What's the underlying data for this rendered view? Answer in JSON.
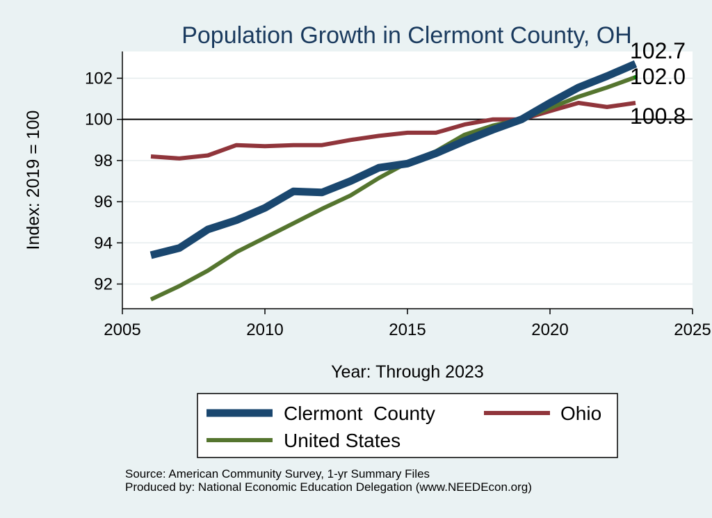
{
  "chart_data": {
    "type": "line",
    "title": "Population Growth in Clermont County, OH",
    "xlabel": "Year: Through 2023",
    "ylabel": "Index: 2019 = 100",
    "xlim": [
      2005,
      2025
    ],
    "ylim": [
      90.8,
      103.3
    ],
    "xticks": [
      2005,
      2010,
      2015,
      2020,
      2025
    ],
    "yticks": [
      92,
      94,
      96,
      98,
      100,
      102
    ],
    "reference_line": 100,
    "grid": true,
    "legend_position": "bottom",
    "x": [
      2006,
      2007,
      2008,
      2009,
      2010,
      2011,
      2012,
      2013,
      2014,
      2015,
      2016,
      2017,
      2018,
      2019,
      2020,
      2021,
      2022,
      2023
    ],
    "series": [
      {
        "name": "Clermont  County",
        "color": "#1a476f",
        "values": [
          93.4,
          93.75,
          94.65,
          95.1,
          95.7,
          96.5,
          96.45,
          97.0,
          97.65,
          97.85,
          98.35,
          98.95,
          99.5,
          100.0,
          100.8,
          101.55,
          102.1,
          102.7
        ],
        "end_label": "102.7"
      },
      {
        "name": "Ohio",
        "color": "#90353b",
        "values": [
          98.2,
          98.1,
          98.25,
          98.75,
          98.7,
          98.75,
          98.75,
          99.0,
          99.2,
          99.35,
          99.35,
          99.75,
          100.0,
          100.0,
          100.4,
          100.8,
          100.6,
          100.8
        ],
        "end_label": "100.8"
      },
      {
        "name": "United States",
        "color": "#55752f",
        "values": [
          91.25,
          91.9,
          92.65,
          93.55,
          94.25,
          94.95,
          95.65,
          96.3,
          97.15,
          97.9,
          98.45,
          99.25,
          99.7,
          100.0,
          100.55,
          101.1,
          101.55,
          102.05
        ],
        "end_label": "102.0"
      }
    ],
    "source_lines": [
      "Source: American Community Survey, 1-yr Summary Files",
      "Produced by: National Economic Education Delegation (www.NEEDEcon.org)"
    ]
  }
}
